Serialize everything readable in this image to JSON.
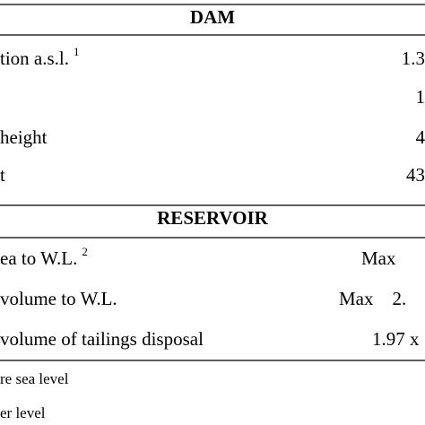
{
  "dam": {
    "title": "DAM",
    "rows": [
      [
        "tion a.s.l.",
        "1",
        "1.3"
      ],
      [
        "",
        "",
        "1"
      ],
      [
        "height",
        "",
        "4"
      ],
      [
        "t",
        "",
        "43"
      ]
    ]
  },
  "reservoir": {
    "title": "RESERVOIR",
    "rows": [
      [
        "ea to W.L.",
        "2",
        "Max"
      ],
      [
        "volume to W.L.",
        "",
        "Max    2."
      ],
      [
        "volume of tailings disposal",
        "",
        "1.97 x"
      ]
    ]
  },
  "footnotes": [
    "re sea level",
    "er level"
  ]
}
